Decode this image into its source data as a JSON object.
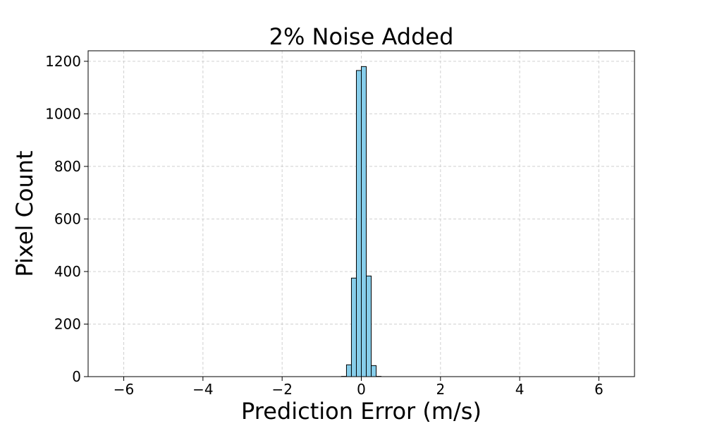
{
  "chart_data": {
    "type": "bar",
    "title": "2% Noise Added",
    "xlabel": "Prediction Error (m/s)",
    "ylabel": "Pixel Count",
    "xlim": [
      -6.9,
      6.9
    ],
    "ylim": [
      0,
      1240
    ],
    "grid": true,
    "legend": "none",
    "x_ticks": [
      {
        "value": -6,
        "label": "−6"
      },
      {
        "value": -4,
        "label": "−4"
      },
      {
        "value": -2,
        "label": "−2"
      },
      {
        "value": 0,
        "label": "0"
      },
      {
        "value": 2,
        "label": "2"
      },
      {
        "value": 4,
        "label": "4"
      },
      {
        "value": 6,
        "label": "6"
      }
    ],
    "y_ticks": [
      {
        "value": 0,
        "label": "0"
      },
      {
        "value": 200,
        "label": "200"
      },
      {
        "value": 400,
        "label": "400"
      },
      {
        "value": 600,
        "label": "600"
      },
      {
        "value": 800,
        "label": "800"
      },
      {
        "value": 1000,
        "label": "1000"
      },
      {
        "value": 1200,
        "label": "1200"
      }
    ],
    "bins": [
      {
        "x0": -0.5,
        "x1": -0.375,
        "count": 1
      },
      {
        "x0": -0.375,
        "x1": -0.25,
        "count": 45
      },
      {
        "x0": -0.25,
        "x1": -0.125,
        "count": 375
      },
      {
        "x0": -0.125,
        "x1": 0.0,
        "count": 1165
      },
      {
        "x0": 0.0,
        "x1": 0.125,
        "count": 1180
      },
      {
        "x0": 0.125,
        "x1": 0.25,
        "count": 383
      },
      {
        "x0": 0.25,
        "x1": 0.375,
        "count": 42
      },
      {
        "x0": 0.375,
        "x1": 0.5,
        "count": 1
      }
    ],
    "colors": {
      "bar_fill": "#87CEEB",
      "bar_edge": "#000000",
      "grid": "#d0d0d0"
    }
  }
}
